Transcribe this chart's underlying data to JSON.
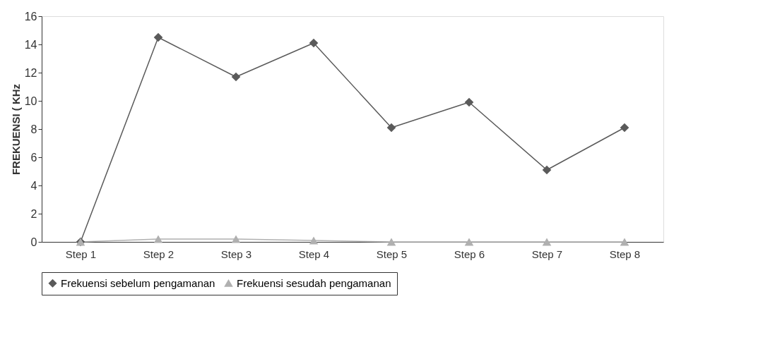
{
  "chart_data": {
    "type": "line",
    "ylabel": "FREKUENSI ( KHz",
    "categories": [
      "Step 1",
      "Step 2",
      "Step 3",
      "Step 4",
      "Step 5",
      "Step 6",
      "Step 7",
      "Step 8"
    ],
    "series": [
      {
        "name": "Frekuensi sebelum pengamanan",
        "color": "#5a5a5a",
        "marker": "diamond",
        "values": [
          0,
          14.5,
          11.7,
          14.1,
          8.1,
          9.9,
          5.1,
          8.1
        ]
      },
      {
        "name": "Frekuensi sesudah pengamanan",
        "color": "#b0b0b0",
        "marker": "triangle",
        "values": [
          0,
          0.2,
          0.2,
          0.1,
          0,
          0,
          0,
          0
        ]
      }
    ],
    "ylim": [
      0,
      16
    ],
    "yticks": [
      0,
      2,
      4,
      6,
      8,
      10,
      12,
      14,
      16
    ],
    "grid": false,
    "legend": "bottom",
    "line_style": "solid"
  }
}
